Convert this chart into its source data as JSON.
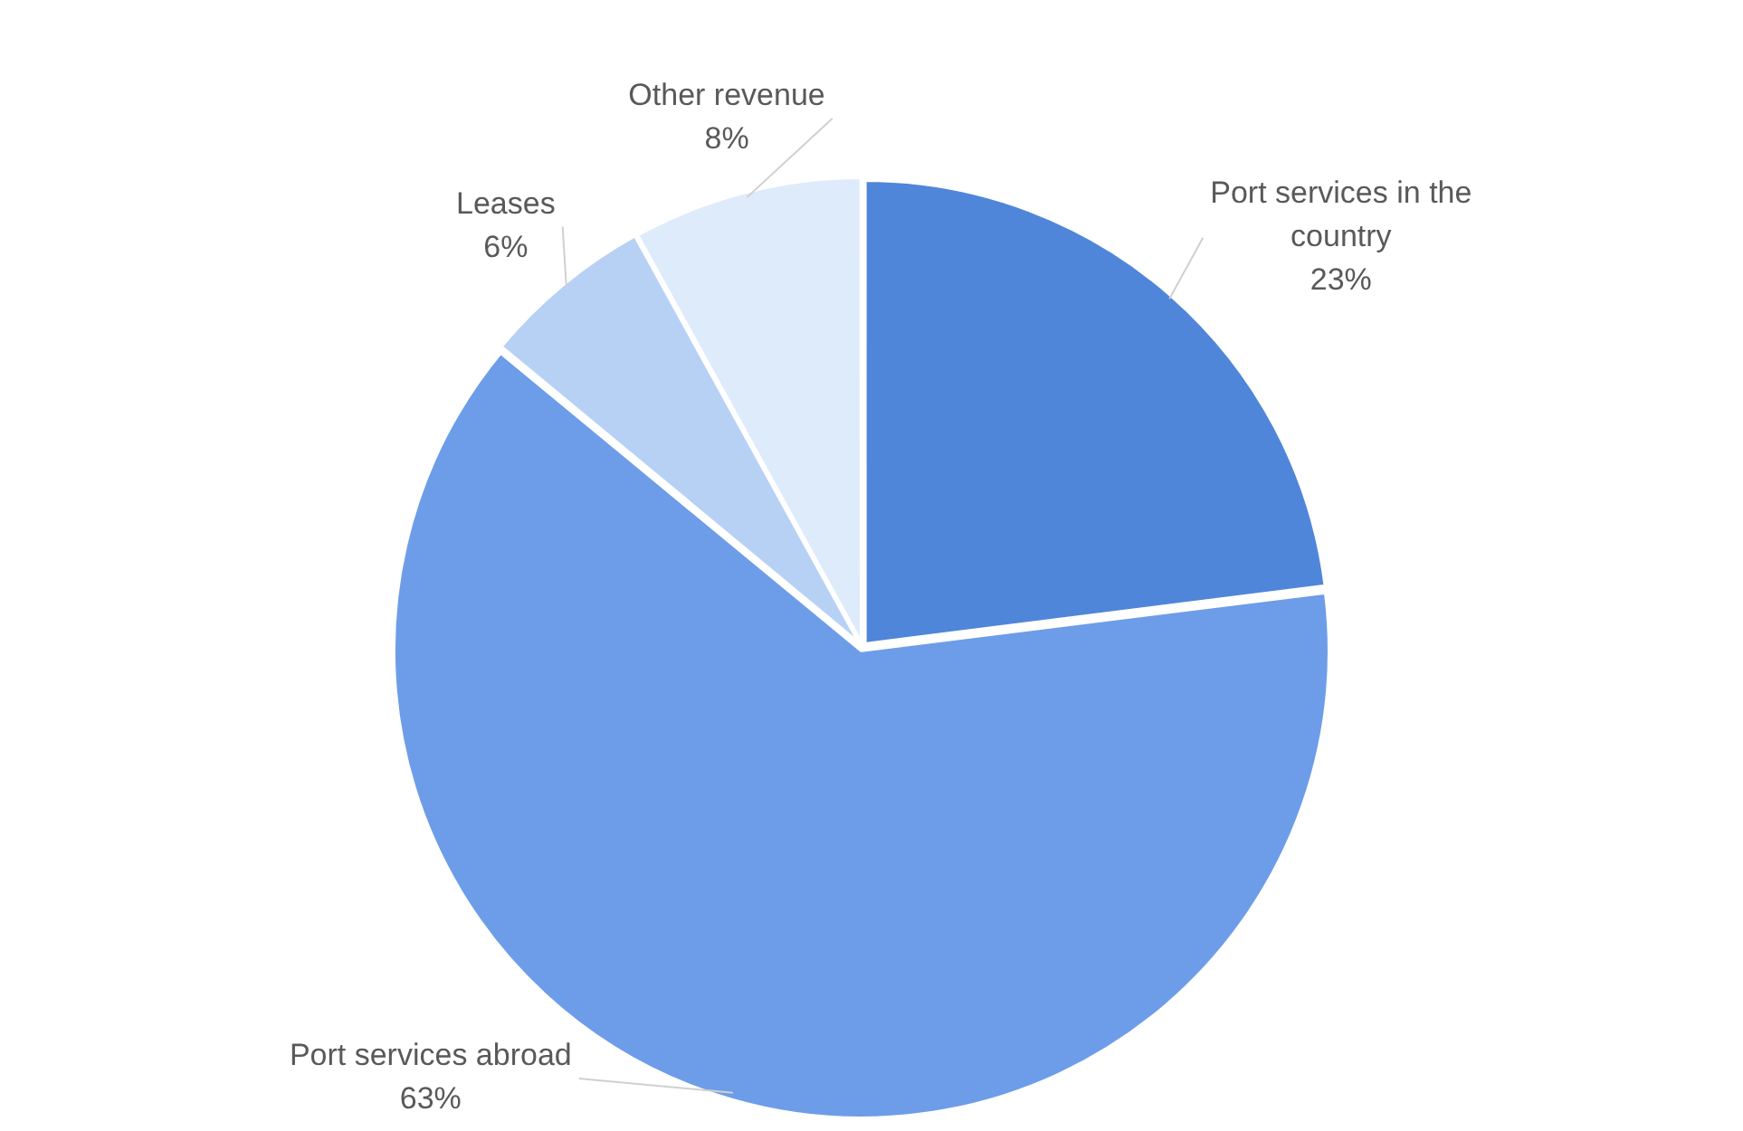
{
  "chart_data": {
    "type": "pie",
    "categories": [
      "Port services in the country",
      "Port services abroad",
      "Leases",
      "Other revenue"
    ],
    "values": [
      23,
      63,
      6,
      8
    ],
    "value_labels": [
      "23%",
      "63%",
      "6%",
      "8%"
    ],
    "colors": [
      "#4f86d9",
      "#6d9de8",
      "#b7d1f5",
      "#deebfb"
    ],
    "legend": false
  }
}
